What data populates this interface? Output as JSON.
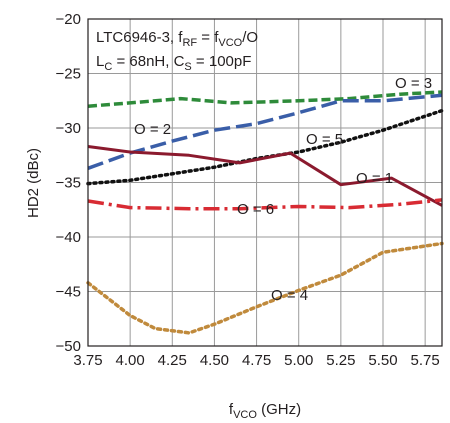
{
  "chart_data": {
    "type": "line",
    "title_line1": "LTC6946-3, f",
    "title_line1_sub1": "RF",
    "title_line1_mid": " = f",
    "title_line1_sub2": "VCO",
    "title_line1_end": "/O",
    "title_line2": "L",
    "title_line2_sub1": "C",
    "title_line2_mid": " = 68nH, C",
    "title_line2_sub2": "S",
    "title_line2_end": " = 100pF",
    "xlabel": "f",
    "xlabel_sub": "VCO",
    "xlabel_end": " (GHz)",
    "ylabel": "HD2 (dBc)",
    "xlim": [
      3.75,
      5.85
    ],
    "ylim": [
      -50,
      -20
    ],
    "xticks": [
      "3.75",
      "4.00",
      "4.25",
      "4.50",
      "4.75",
      "5.00",
      "5.25",
      "5.50",
      "5.75"
    ],
    "yticks": [
      "−20",
      "−25",
      "−30",
      "−35",
      "−40",
      "−45",
      "−50"
    ],
    "grid": true,
    "series": [
      {
        "name": "O = 3",
        "color": "#2e8b3a",
        "dash": "9,4",
        "width": 3.5,
        "x": [
          3.75,
          4.0,
          4.3,
          4.6,
          5.0,
          5.3,
          5.6,
          5.85
        ],
        "y": [
          -28.0,
          -27.7,
          -27.3,
          -27.7,
          -27.5,
          -27.3,
          -26.9,
          -26.7
        ]
      },
      {
        "name": "O = 2",
        "color": "#3a5ea8",
        "dash": "16,6",
        "width": 3.5,
        "x": [
          3.75,
          4.0,
          4.25,
          4.5,
          4.75,
          5.0,
          5.25,
          5.5,
          5.85
        ],
        "y": [
          -33.7,
          -32.3,
          -31.2,
          -30.2,
          -29.6,
          -28.6,
          -27.5,
          -27.5,
          -27.0
        ]
      },
      {
        "name": "O = 5",
        "color": "#111111",
        "dash": "2,4",
        "width": 3.5,
        "x": [
          3.75,
          4.0,
          4.25,
          4.5,
          4.75,
          5.0,
          5.25,
          5.5,
          5.85
        ],
        "y": [
          -35.1,
          -34.8,
          -34.2,
          -33.6,
          -32.8,
          -32.2,
          -31.3,
          -30.2,
          -28.4
        ]
      },
      {
        "name": "O = 1",
        "color": "#8b1a2e",
        "dash": "",
        "width": 3,
        "x": [
          3.75,
          4.0,
          4.35,
          4.65,
          4.95,
          5.25,
          5.55,
          5.85
        ],
        "y": [
          -31.7,
          -32.2,
          -32.5,
          -33.2,
          -32.3,
          -35.2,
          -34.6,
          -37.1
        ]
      },
      {
        "name": "O = 6",
        "color": "#d82b33",
        "dash": "16,5,3,5",
        "width": 3.5,
        "x": [
          3.75,
          4.0,
          4.35,
          4.65,
          5.0,
          5.3,
          5.6,
          5.85
        ],
        "y": [
          -36.7,
          -37.3,
          -37.4,
          -37.4,
          -37.2,
          -37.3,
          -37.0,
          -36.6
        ]
      },
      {
        "name": "O = 4",
        "color": "#c08a3c",
        "dash": "3,4",
        "width": 3.5,
        "x": [
          3.75,
          4.0,
          4.15,
          4.35,
          4.5,
          4.75,
          5.0,
          5.25,
          5.5,
          5.85
        ],
        "y": [
          -44.2,
          -47.2,
          -48.4,
          -48.8,
          -48.0,
          -46.4,
          -44.9,
          -43.5,
          -41.4,
          -40.6
        ]
      }
    ]
  }
}
